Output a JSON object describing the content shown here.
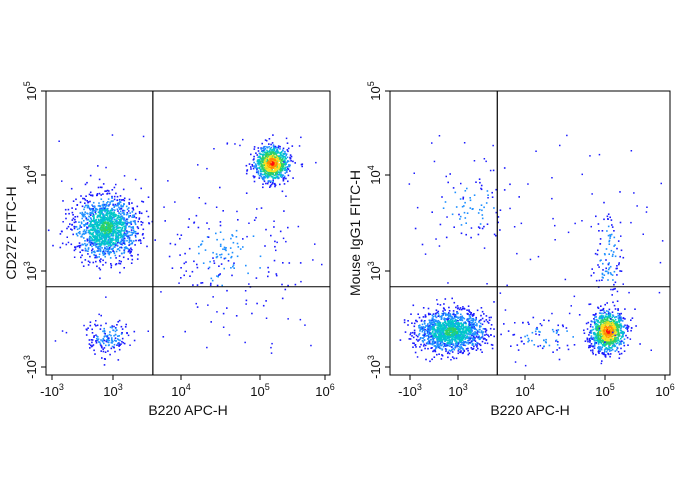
{
  "colors": {
    "axis": "#000000",
    "gate": "#000000",
    "density_scale": [
      "#1a1aff",
      "#1e90ff",
      "#00c8c8",
      "#30d060",
      "#ffe020",
      "#ff8c00",
      "#ff1010"
    ]
  },
  "chart_data": [
    {
      "type": "scatter",
      "subtype": "flow-cytometry-density-dot-plot",
      "xlabel": "B220 APC-H",
      "ylabel": "CD272 FITC-H",
      "x_scale": "biexponential",
      "y_scale": "biexponential",
      "x_ticks": [
        {
          "base": "-10",
          "exp": "3"
        },
        {
          "base": "10",
          "exp": "3"
        },
        {
          "base": "10",
          "exp": "4"
        },
        {
          "base": "10",
          "exp": "5"
        },
        {
          "base": "10",
          "exp": "6"
        }
      ],
      "y_ticks": [
        {
          "base": "-10",
          "exp": "3"
        },
        {
          "base": "10",
          "exp": "3"
        },
        {
          "base": "10",
          "exp": "4"
        },
        {
          "base": "10",
          "exp": "5"
        }
      ],
      "xlim": [
        -2000,
        1000000
      ],
      "ylim": [
        -2000,
        100000
      ],
      "quadrant_gate": {
        "x": 4000,
        "y": 600
      },
      "populations": [
        {
          "x": 700,
          "y": 3000,
          "spread_x": 0.55,
          "spread_y": 0.55,
          "relative_size": 0.55,
          "peak_density": "green"
        },
        {
          "x": 150000,
          "y": 14000,
          "spread_x": 0.3,
          "spread_y": 0.3,
          "relative_size": 0.33,
          "peak_density": "red"
        },
        {
          "x": 800,
          "y": -300,
          "spread_x": 0.4,
          "spread_y": 0.3,
          "relative_size": 0.06,
          "peak_density": "blue"
        },
        {
          "x": 40000,
          "y": 1500,
          "spread_x": 1.0,
          "spread_y": 0.9,
          "relative_size": 0.06,
          "peak_density": "blue"
        }
      ]
    },
    {
      "type": "scatter",
      "subtype": "flow-cytometry-density-dot-plot",
      "xlabel": "B220 APC-H",
      "ylabel": "Mouse IgG1 FITC-H",
      "x_scale": "biexponential",
      "y_scale": "biexponential",
      "x_ticks": [
        {
          "base": "-10",
          "exp": "3"
        },
        {
          "base": "10",
          "exp": "3"
        },
        {
          "base": "10",
          "exp": "4"
        },
        {
          "base": "10",
          "exp": "5"
        },
        {
          "base": "10",
          "exp": "6"
        }
      ],
      "y_ticks": [
        {
          "base": "-10",
          "exp": "3"
        },
        {
          "base": "10",
          "exp": "3"
        },
        {
          "base": "10",
          "exp": "4"
        },
        {
          "base": "10",
          "exp": "5"
        }
      ],
      "xlim": [
        -2000,
        1000000
      ],
      "ylim": [
        -2000,
        100000
      ],
      "quadrant_gate": {
        "x": 4000,
        "y": 600
      },
      "populations": [
        {
          "x": 600,
          "y": -200,
          "spread_x": 0.6,
          "spread_y": 0.35,
          "relative_size": 0.55,
          "peak_density": "green"
        },
        {
          "x": 110000,
          "y": -200,
          "spread_x": 0.3,
          "spread_y": 0.35,
          "relative_size": 0.35,
          "peak_density": "red"
        },
        {
          "x": 1500,
          "y": 5000,
          "spread_x": 0.8,
          "spread_y": 0.6,
          "relative_size": 0.03,
          "peak_density": "blue"
        },
        {
          "x": 110000,
          "y": 1500,
          "spread_x": 0.25,
          "spread_y": 0.9,
          "relative_size": 0.04,
          "peak_density": "blue"
        },
        {
          "x": 20000,
          "y": -300,
          "spread_x": 0.8,
          "spread_y": 0.3,
          "relative_size": 0.03,
          "peak_density": "blue"
        }
      ]
    }
  ]
}
